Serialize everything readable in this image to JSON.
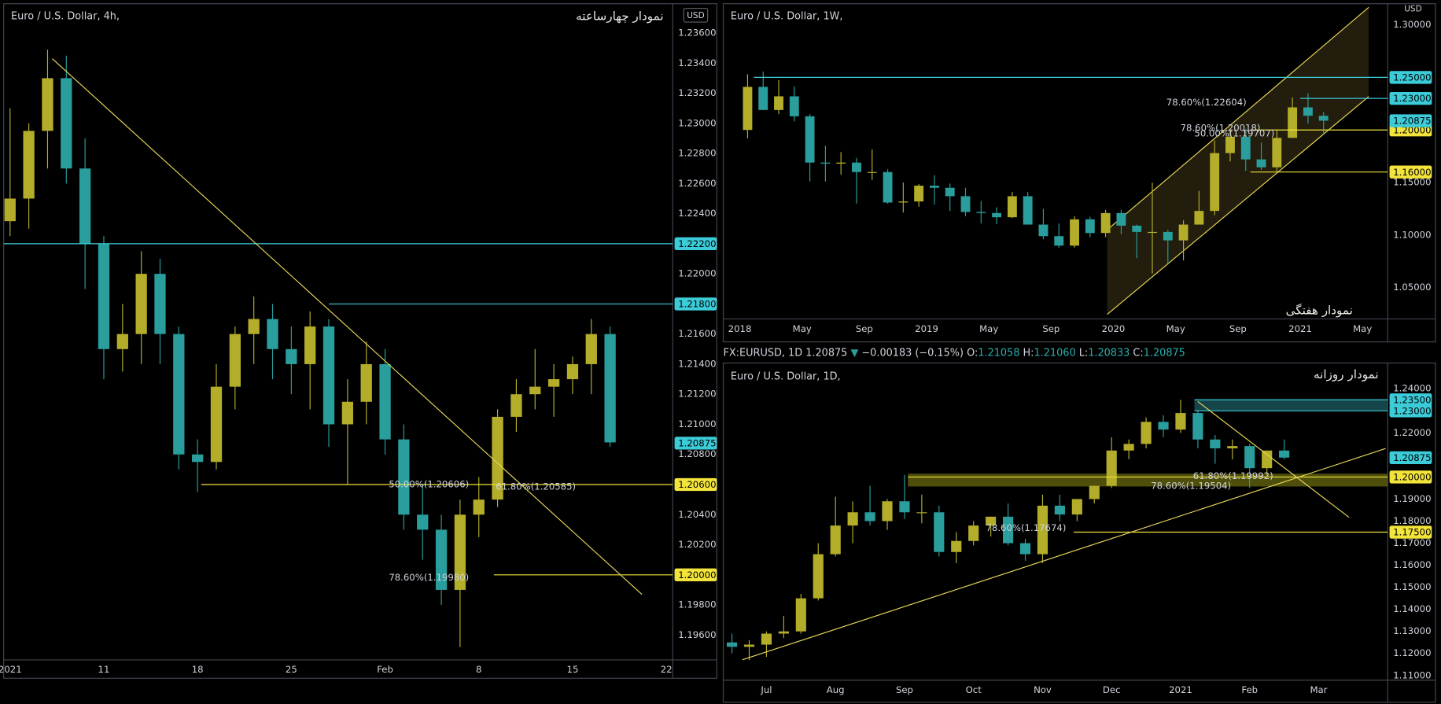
{
  "chart_data": [
    {
      "type": "candlestick",
      "title": "Euro / U.S. Dollar, 4h,",
      "annotation_title": "نمودار چهارساعته",
      "currency": "USD",
      "xlim": [
        0.66,
        36.34
      ],
      "ylim": [
        1.19435,
        1.23795
      ],
      "xticks": [
        {
          "value": 1,
          "label": "2021"
        },
        {
          "value": 6,
          "label": "11"
        },
        {
          "value": 11,
          "label": "18"
        },
        {
          "value": 16,
          "label": "25"
        },
        {
          "value": 21,
          "label": "Feb"
        },
        {
          "value": 26,
          "label": "8"
        },
        {
          "value": 31,
          "label": "15"
        },
        {
          "value": 36,
          "label": "22"
        }
      ],
      "yticks": [
        {
          "value": 1.196,
          "label": "1.19600"
        },
        {
          "value": 1.198,
          "label": "1.19800"
        },
        {
          "value": 1.202,
          "label": "1.20200"
        },
        {
          "value": 1.204,
          "label": "1.20400"
        },
        {
          "value": 1.208,
          "label": "1.20800"
        },
        {
          "value": 1.21,
          "label": "1.21000"
        },
        {
          "value": 1.212,
          "label": "1.21200"
        },
        {
          "value": 1.214,
          "label": "1.21400"
        },
        {
          "value": 1.216,
          "label": "1.21600"
        },
        {
          "value": 1.22,
          "label": "1.22000"
        },
        {
          "value": 1.224,
          "label": "1.22400"
        },
        {
          "value": 1.226,
          "label": "1.22600"
        },
        {
          "value": 1.228,
          "label": "1.22800"
        },
        {
          "value": 1.23,
          "label": "1.23000"
        },
        {
          "value": 1.232,
          "label": "1.23200"
        },
        {
          "value": 1.234,
          "label": "1.23400"
        },
        {
          "value": 1.236,
          "label": "1.23600"
        }
      ],
      "up_color": "#b3ad2a",
      "down_color": "#2a9d9d",
      "candles": {
        "x": [
          1,
          2,
          3,
          4,
          5,
          6,
          7,
          8,
          9,
          10,
          11,
          12,
          13,
          14,
          15,
          16,
          17,
          18,
          19,
          20,
          21,
          22,
          23,
          24,
          25,
          26,
          27,
          28,
          29,
          30,
          31,
          32,
          33
        ],
        "open": [
          1.2235,
          1.225,
          1.2295,
          1.233,
          1.227,
          1.222,
          1.215,
          1.216,
          1.22,
          1.216,
          1.208,
          1.2075,
          1.2125,
          1.216,
          1.217,
          1.215,
          1.214,
          1.2165,
          1.21,
          1.2115,
          1.214,
          1.209,
          1.204,
          1.203,
          1.199,
          1.204,
          1.205,
          1.2105,
          1.212,
          1.2125,
          1.213,
          1.214,
          1.216
        ],
        "high": [
          1.231,
          1.23,
          1.2349,
          1.2345,
          1.229,
          1.2225,
          1.218,
          1.2215,
          1.221,
          1.2165,
          1.209,
          1.214,
          1.2165,
          1.2185,
          1.218,
          1.2165,
          1.2175,
          1.217,
          1.213,
          1.2155,
          1.215,
          1.21,
          1.206,
          1.204,
          1.205,
          1.2065,
          1.211,
          1.213,
          1.215,
          1.214,
          1.2145,
          1.217,
          1.2165
        ],
        "low": [
          1.2225,
          1.223,
          1.227,
          1.226,
          1.219,
          1.213,
          1.2135,
          1.214,
          1.214,
          1.207,
          1.2055,
          1.207,
          1.211,
          1.214,
          1.213,
          1.212,
          1.211,
          1.2085,
          1.206,
          1.21,
          1.208,
          1.203,
          1.201,
          1.198,
          1.1952,
          1.2025,
          1.2045,
          1.2095,
          1.211,
          1.2105,
          1.212,
          1.212,
          1.2085
        ],
        "close": [
          1.225,
          1.2295,
          1.233,
          1.227,
          1.222,
          1.215,
          1.216,
          1.22,
          1.216,
          1.208,
          1.2075,
          1.2125,
          1.216,
          1.217,
          1.215,
          1.214,
          1.2165,
          1.21,
          1.2115,
          1.214,
          1.209,
          1.204,
          1.203,
          1.199,
          1.204,
          1.205,
          1.2105,
          1.212,
          1.2125,
          1.213,
          1.214,
          1.216,
          1.2088
        ]
      },
      "levels": [
        {
          "value": 1.222,
          "label": "1.22200",
          "color": "#3ccbd8",
          "from": 0.66
        },
        {
          "value": 1.218,
          "label": "1.21800",
          "color": "#3ccbd8",
          "from": 18.0
        },
        {
          "value": 1.206,
          "label": "1.20600",
          "color": "#f2e43a",
          "from": 11.2
        },
        {
          "value": 1.2,
          "label": "1.20000",
          "color": "#f2e43a",
          "from": 26.8
        }
      ],
      "price": {
        "value": 1.20875,
        "label": "1.20875",
        "color": "#3ccbd8"
      },
      "lines": [
        {
          "x": [
            3.25,
            34.7
          ],
          "y": [
            1.2343,
            1.1987
          ],
          "color": "#e5d65a"
        }
      ],
      "annotations": [
        {
          "text": "50.00%(1.20606)",
          "x": 21.2,
          "y": 1.206,
          "color": "#f3a93c"
        },
        {
          "text": "61.80%(1.20585)",
          "x": 26.9,
          "y": 1.20585,
          "color": "#f3a93c"
        },
        {
          "text": "78.60%(1.19980)",
          "x": 21.2,
          "y": 1.1998,
          "color": "#f3a93c"
        }
      ]
    },
    {
      "type": "candlestick",
      "title": "Euro / U.S. Dollar, 1W,",
      "annotation_title": "نمودار هفتگی",
      "currency": "USD",
      "xlim": [
        -1.063,
        41.62
      ],
      "ylim": [
        1.0203,
        1.3201
      ],
      "xticks": [
        {
          "value": 0,
          "label": "2018"
        },
        {
          "value": 4,
          "label": "May"
        },
        {
          "value": 8,
          "label": "Sep"
        },
        {
          "value": 12,
          "label": "2019"
        },
        {
          "value": 16,
          "label": "May"
        },
        {
          "value": 20,
          "label": "Sep"
        },
        {
          "value": 24,
          "label": "2020"
        },
        {
          "value": 28,
          "label": "May"
        },
        {
          "value": 32,
          "label": "Sep"
        },
        {
          "value": 36,
          "label": "2021"
        },
        {
          "value": 40,
          "label": "May"
        }
      ],
      "yticks": [
        {
          "value": 1.05,
          "label": "1.05000"
        },
        {
          "value": 1.1,
          "label": "1.10000"
        },
        {
          "value": 1.15,
          "label": "1.15000"
        },
        {
          "value": 1.3,
          "label": "1.30000"
        }
      ],
      "up_color": "#b3ad2a",
      "down_color": "#2a9d9d",
      "candles": {
        "x": [
          0.5,
          1.5,
          2.5,
          3.5,
          4.5,
          5.5,
          6.5,
          7.5,
          8.5,
          9.5,
          10.5,
          11.5,
          12.5,
          13.5,
          14.5,
          15.5,
          16.5,
          17.5,
          18.5,
          19.5,
          20.5,
          21.5,
          22.5,
          23.5,
          24.5,
          25.5,
          26.5,
          27.5,
          28.5,
          29.5,
          30.5,
          31.5,
          32.5,
          33.5,
          34.5,
          35.5,
          36.5,
          37.5
        ],
        "open": [
          1.2,
          1.241,
          1.219,
          1.232,
          1.213,
          1.169,
          1.168,
          1.169,
          1.16,
          1.16,
          1.131,
          1.132,
          1.147,
          1.145,
          1.137,
          1.122,
          1.121,
          1.117,
          1.137,
          1.11,
          1.099,
          1.09,
          1.115,
          1.102,
          1.121,
          1.109,
          1.103,
          1.103,
          1.095,
          1.11,
          1.123,
          1.178,
          1.1935,
          1.172,
          1.1645,
          1.1925,
          1.2215,
          1.2135
        ],
        "high": [
          1.253,
          1.2555,
          1.2475,
          1.2415,
          1.215,
          1.185,
          1.179,
          1.1735,
          1.1815,
          1.1625,
          1.15,
          1.1485,
          1.157,
          1.149,
          1.145,
          1.1325,
          1.1265,
          1.141,
          1.141,
          1.125,
          1.111,
          1.118,
          1.1175,
          1.124,
          1.124,
          1.11,
          1.15,
          1.105,
          1.114,
          1.142,
          1.19,
          1.201,
          1.201,
          1.188,
          1.2,
          1.231,
          1.235,
          1.217
        ],
        "low": [
          1.192,
          1.22,
          1.215,
          1.208,
          1.151,
          1.151,
          1.1575,
          1.13,
          1.1525,
          1.13,
          1.1215,
          1.127,
          1.129,
          1.123,
          1.118,
          1.111,
          1.1105,
          1.116,
          1.11,
          1.096,
          1.088,
          1.088,
          1.098,
          1.098,
          1.101,
          1.078,
          1.0635,
          1.073,
          1.076,
          1.11,
          1.119,
          1.17,
          1.161,
          1.162,
          1.16,
          1.1925,
          1.206,
          1.195
        ],
        "close": [
          1.241,
          1.219,
          1.232,
          1.213,
          1.169,
          1.168,
          1.169,
          1.16,
          1.16,
          1.131,
          1.132,
          1.147,
          1.145,
          1.137,
          1.122,
          1.121,
          1.117,
          1.137,
          1.11,
          1.099,
          1.09,
          1.115,
          1.102,
          1.121,
          1.109,
          1.103,
          1.103,
          1.095,
          1.11,
          1.123,
          1.178,
          1.1935,
          1.172,
          1.1645,
          1.1925,
          1.2215,
          1.2135,
          1.2088
        ]
      },
      "channel": {
        "x": [
          23.6,
          40.4
        ],
        "lower": [
          1.0246,
          1.2318
        ],
        "upper": [
          1.105,
          1.3166
        ],
        "color": "#e5d65a"
      },
      "levels": [
        {
          "value": 1.25,
          "label": "1.25000",
          "color": "#3ccbd8",
          "from": 0.9
        },
        {
          "value": 1.23,
          "label": "1.23000",
          "color": "#3ccbd8",
          "from": 36.0
        },
        {
          "value": 1.2,
          "label": "1.20000",
          "color": "#f2e43a",
          "from": 32.8
        },
        {
          "value": 1.16,
          "label": "1.16000",
          "color": "#f2e43a",
          "from": 32.8
        }
      ],
      "price": {
        "value": 1.20875,
        "label": "1.20875",
        "color": "#3ccbd8"
      },
      "annotations": [
        {
          "text": "78.60%(1.22604)",
          "x": 27.4,
          "y": 1.226,
          "color": "#f07a3c"
        },
        {
          "text": "78.60%(1.20018)",
          "x": 28.3,
          "y": 1.2015,
          "color": "#f07a3c"
        },
        {
          "text": "50.00%(1.19707)",
          "x": 29.2,
          "y": 1.1965,
          "color": "#f3a93c"
        }
      ]
    },
    {
      "type": "candlestick",
      "title": "Euro / U.S. Dollar, 1D,",
      "annotation_title": "نمودار روزانه",
      "xlim": [
        -0.626,
        9.0
      ],
      "ylim": [
        1.10792,
        1.25167
      ],
      "xticks": [
        {
          "value": 0,
          "label": "Jul"
        },
        {
          "value": 1,
          "label": "Aug"
        },
        {
          "value": 2,
          "label": "Sep"
        },
        {
          "value": 3,
          "label": "Oct"
        },
        {
          "value": 4,
          "label": "Nov"
        },
        {
          "value": 5,
          "label": "Dec"
        },
        {
          "value": 6,
          "label": "2021"
        },
        {
          "value": 7,
          "label": "Feb"
        },
        {
          "value": 8,
          "label": "Mar"
        }
      ],
      "yticks": [
        {
          "value": 1.11,
          "label": "1.11000"
        },
        {
          "value": 1.12,
          "label": "1.12000"
        },
        {
          "value": 1.13,
          "label": "1.13000"
        },
        {
          "value": 1.14,
          "label": "1.14000"
        },
        {
          "value": 1.15,
          "label": "1.15000"
        },
        {
          "value": 1.16,
          "label": "1.16000"
        },
        {
          "value": 1.17,
          "label": "1.17000"
        },
        {
          "value": 1.18,
          "label": "1.18000"
        },
        {
          "value": 1.19,
          "label": "1.19000"
        },
        {
          "value": 1.22,
          "label": "1.22000"
        },
        {
          "value": 1.24,
          "label": "1.24000"
        }
      ],
      "up_color": "#b3ad2a",
      "down_color": "#2a9d9d",
      "candles": {
        "x": [
          -0.5,
          -0.25,
          0,
          0.25,
          0.5,
          0.75,
          1,
          1.25,
          1.5,
          1.75,
          2,
          2.25,
          2.5,
          2.75,
          3,
          3.25,
          3.5,
          3.75,
          4,
          4.25,
          4.5,
          4.75,
          5,
          5.25,
          5.5,
          5.75,
          6,
          6.25,
          6.5,
          6.75,
          7,
          7.25,
          7.5
        ],
        "open": [
          1.125,
          1.123,
          1.124,
          1.129,
          1.13,
          1.145,
          1.165,
          1.178,
          1.184,
          1.18,
          1.189,
          1.184,
          1.184,
          1.166,
          1.171,
          1.178,
          1.182,
          1.17,
          1.165,
          1.187,
          1.183,
          1.19,
          1.196,
          1.212,
          1.215,
          1.225,
          1.2215,
          1.229,
          1.217,
          1.213,
          1.214,
          1.204,
          1.212
        ],
        "high": [
          1.129,
          1.126,
          1.13,
          1.137,
          1.147,
          1.17,
          1.191,
          1.189,
          1.196,
          1.19,
          1.201,
          1.192,
          1.187,
          1.175,
          1.18,
          1.182,
          1.188,
          1.172,
          1.192,
          1.192,
          1.19,
          1.196,
          1.218,
          1.217,
          1.227,
          1.228,
          1.235,
          1.23,
          1.219,
          1.217,
          1.215,
          1.212,
          1.217
        ],
        "low": [
          1.12,
          1.117,
          1.1185,
          1.127,
          1.129,
          1.144,
          1.164,
          1.17,
          1.178,
          1.176,
          1.181,
          1.179,
          1.164,
          1.161,
          1.169,
          1.173,
          1.169,
          1.162,
          1.161,
          1.18,
          1.18,
          1.188,
          1.195,
          1.208,
          1.213,
          1.218,
          1.22,
          1.213,
          1.206,
          1.208,
          1.195,
          1.201,
          1.208
        ],
        "close": [
          1.123,
          1.124,
          1.129,
          1.13,
          1.145,
          1.165,
          1.178,
          1.184,
          1.18,
          1.189,
          1.184,
          1.184,
          1.166,
          1.171,
          1.178,
          1.182,
          1.17,
          1.165,
          1.187,
          1.183,
          1.19,
          1.196,
          1.212,
          1.215,
          1.225,
          1.2215,
          1.229,
          1.217,
          1.213,
          1.214,
          1.204,
          1.212,
          1.2088
        ]
      },
      "zones": [
        {
          "from": 6.2,
          "ylim": [
            1.23,
            1.235
          ],
          "color": "#1c5c63"
        },
        {
          "from": 2.05,
          "ylim": [
            1.1957,
            1.2015
          ],
          "color": "#6a6a10"
        }
      ],
      "levels": [
        {
          "value": 1.235,
          "label": "1.23500",
          "color": "#3ccbd8",
          "from": 6.2
        },
        {
          "value": 1.23,
          "label": "1.23000",
          "color": "#3ccbd8",
          "from": 6.2
        },
        {
          "value": 1.2,
          "label": "1.20000",
          "color": "#f2e43a",
          "from": 2.05
        },
        {
          "value": 1.175,
          "label": "1.17500",
          "color": "#f2e43a",
          "from": 4.45
        }
      ],
      "price": {
        "value": 1.20875,
        "label": "1.20875",
        "color": "#3ccbd8"
      },
      "lines": [
        {
          "x": [
            -0.35,
            8.97
          ],
          "y": [
            1.1171,
            1.2129
          ],
          "color": "#e5d65a"
        },
        {
          "x": [
            6.25,
            8.44
          ],
          "y": [
            1.2342,
            1.1817
          ],
          "color": "#e5d65a"
        }
      ],
      "annotations": [
        {
          "text": "78.60%(1.17674)",
          "x": 3.18,
          "y": 1.1767,
          "color": "#f3a93c"
        },
        {
          "text": "61.80%(1.19992)",
          "x": 6.18,
          "y": 1.2003,
          "color": "#f3a93c"
        },
        {
          "text": "78.60%(1.19504)",
          "x": 5.57,
          "y": 1.1958,
          "color": "#f07a3c"
        }
      ]
    }
  ],
  "info_bar": {
    "symbol": "FX:EURUSD, 1D",
    "last": "1.20875",
    "arrow": "▼",
    "change": "−0.00183 (−0.15%)",
    "open_label": "O:",
    "open": "1.21058",
    "high_label": "H:",
    "high": "1.21060",
    "low_label": "L:",
    "low": "1.20833",
    "close_label": "C:",
    "close": "1.20875"
  }
}
